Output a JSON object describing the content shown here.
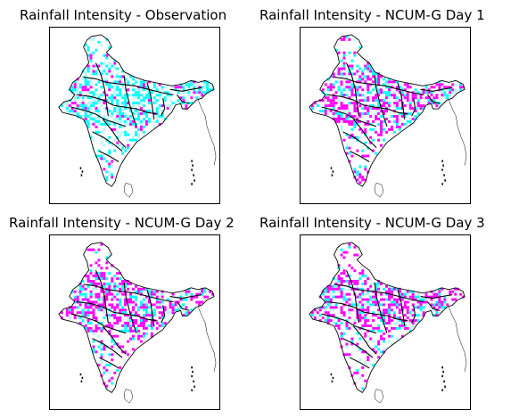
{
  "figure": {
    "panels": [
      {
        "id": "observation",
        "title": "Rainfall Intensity - Observation",
        "heavy_rain_level": 0.15,
        "moderate_rain_level": 0.5
      },
      {
        "id": "day1",
        "title": "Rainfall Intensity - NCUM-G Day 1",
        "heavy_rain_level": 0.55,
        "moderate_rain_level": 0.3
      },
      {
        "id": "day2",
        "title": "Rainfall Intensity - NCUM-G Day 2",
        "heavy_rain_level": 0.6,
        "moderate_rain_level": 0.25
      },
      {
        "id": "day3",
        "title": "Rainfall Intensity - NCUM-G Day 3",
        "heavy_rain_level": 0.62,
        "moderate_rain_level": 0.22
      }
    ],
    "colors": {
      "heavy_rain": "#ff00ff",
      "moderate_rain": "#00ffff",
      "light_rain": "#b8f5f5",
      "boundary": "#000000",
      "background": "#ffffff"
    }
  }
}
